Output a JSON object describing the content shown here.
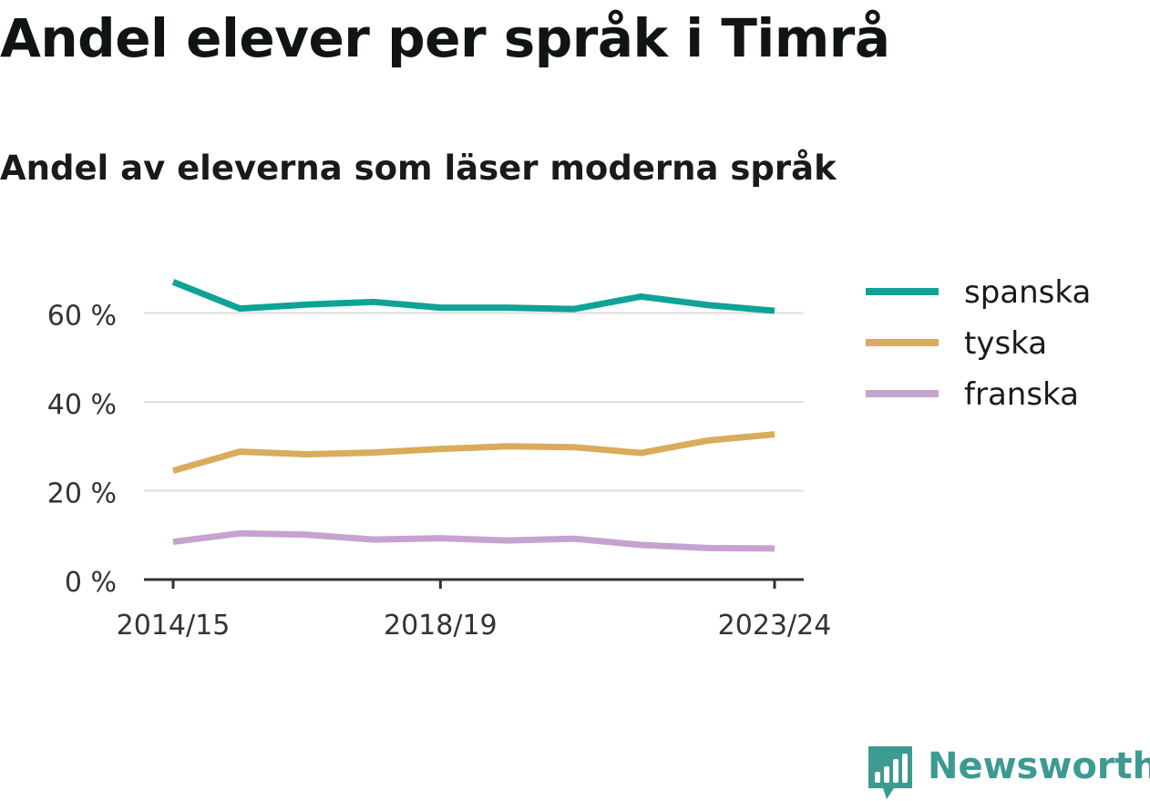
{
  "title": "Andel elever per språk i Timrå",
  "subtitle": "Andel av eleverna som läser moderna språk",
  "brand": {
    "name": "Newsworthy",
    "color": "#3d9a91",
    "icon": "bar-chart-speech-bubble-icon"
  },
  "chart_data": {
    "type": "line",
    "title": "Andel elever per språk i Timrå",
    "subtitle": "Andel av eleverna som läser moderna språk",
    "x": [
      "2014/15",
      "2015/16",
      "2016/17",
      "2017/18",
      "2018/19",
      "2019/20",
      "2020/21",
      "2021/22",
      "2022/23",
      "2023/24"
    ],
    "x_tick_labels": [
      "2014/15",
      "2018/19",
      "2023/24"
    ],
    "ylim": [
      0,
      70
    ],
    "y_ticks": [
      0,
      20,
      40,
      60
    ],
    "y_tick_labels": [
      "0 %",
      "20 %",
      "40 %",
      "60 %"
    ],
    "grid": "horizontal",
    "legend": "right",
    "series": [
      {
        "name": "spanska",
        "color": "#0ea396",
        "values": [
          67.0,
          61.0,
          61.9,
          62.5,
          61.2,
          61.2,
          60.9,
          63.7,
          61.8,
          60.5
        ]
      },
      {
        "name": "tyska",
        "color": "#d9ac5b",
        "values": [
          24.5,
          28.8,
          28.2,
          28.6,
          29.4,
          30.0,
          29.8,
          28.5,
          31.3,
          32.7
        ]
      },
      {
        "name": "franska",
        "color": "#c6a2ce",
        "values": [
          8.5,
          10.4,
          10.1,
          9.0,
          9.3,
          8.8,
          9.2,
          7.8,
          7.1,
          7.0
        ]
      }
    ]
  }
}
